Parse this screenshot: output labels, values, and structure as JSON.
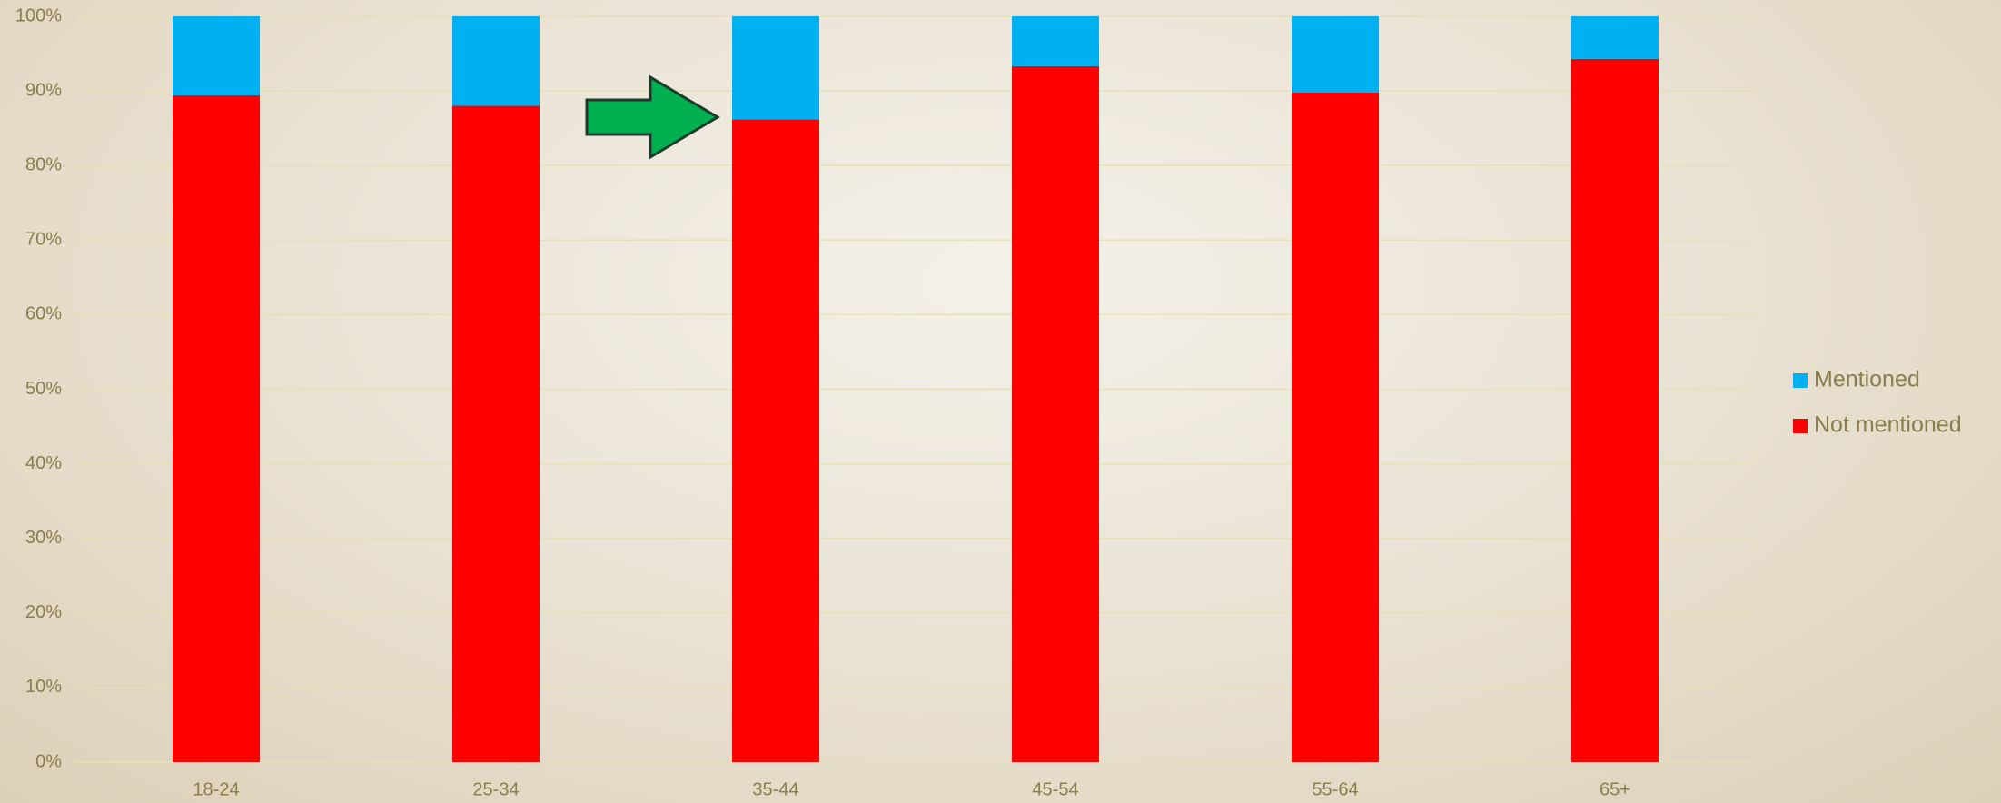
{
  "chart_data": {
    "type": "stacked_bar",
    "categories": [
      "18-24",
      "25-34",
      "35-44",
      "45-54",
      "55-64",
      "65+"
    ],
    "series": [
      {
        "name": "Not mentioned",
        "color": "#ff0000",
        "values": [
          89.4,
          88.0,
          86.2,
          93.3,
          89.8,
          94.3
        ]
      },
      {
        "name": "Mentioned",
        "color": "#00b0f0",
        "values": [
          10.6,
          12.0,
          13.8,
          6.7,
          10.2,
          5.7
        ]
      }
    ],
    "ylim": [
      0,
      100
    ],
    "yticks": [
      {
        "value": 0,
        "label": "0%"
      },
      {
        "value": 10,
        "label": "10%"
      },
      {
        "value": 20,
        "label": "20%"
      },
      {
        "value": 30,
        "label": "30%"
      },
      {
        "value": 40,
        "label": "40%"
      },
      {
        "value": 50,
        "label": "50%"
      },
      {
        "value": 60,
        "label": "60%"
      },
      {
        "value": 70,
        "label": "70%"
      },
      {
        "value": 80,
        "label": "80%"
      },
      {
        "value": 90,
        "label": "90%"
      },
      {
        "value": 100,
        "label": "100%"
      }
    ],
    "grid": true,
    "legend": "right"
  }
}
